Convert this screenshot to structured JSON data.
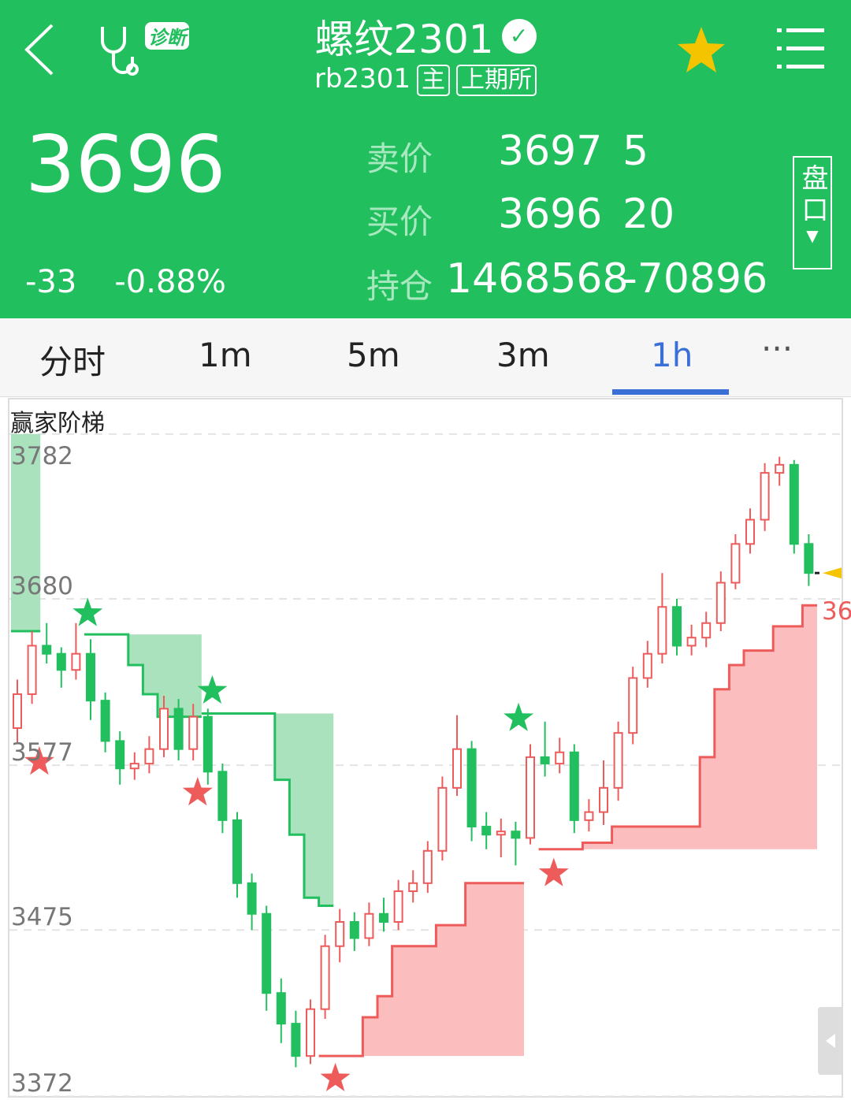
{
  "header": {
    "title": "螺纹2301",
    "code": "rb2301",
    "tag_main": "主",
    "exchange": "上期所",
    "diagnose_badge": "诊断",
    "last_price": "3696",
    "change": "-33",
    "change_pct": "-0.88%",
    "ask_label": "卖价",
    "ask_price": "3697",
    "ask_vol": "5",
    "bid_label": "买价",
    "bid_price": "3696",
    "bid_vol": "20",
    "oi_label": "持仓",
    "oi": "1468568",
    "oi_change": "-70896",
    "orderbook_button": "盘口",
    "favorite": true
  },
  "tabs": [
    {
      "label": "分时"
    },
    {
      "label": "1m"
    },
    {
      "label": "5m"
    },
    {
      "label": "3m"
    },
    {
      "label": "1h",
      "active": true
    },
    {
      "label": "···"
    }
  ],
  "colors": {
    "header": "#22bf5f",
    "up": "#ee5b5b",
    "down": "#22bf5f",
    "active_tab": "#3a6fd8",
    "current_price_marker": "#f5c400"
  },
  "chart_data": {
    "type": "candlestick",
    "title": "赢家阶梯",
    "yticks": [
      "3782",
      "3680",
      "3577",
      "3475",
      "3372"
    ],
    "ytick_values": [
      3782,
      3680,
      3577,
      3475,
      3372
    ],
    "ylim": [
      3372,
      3782
    ],
    "current_price": 3696,
    "ladder_label": "36",
    "ohlc": [
      [
        3600,
        3630,
        3590,
        3621
      ],
      [
        3621,
        3660,
        3615,
        3651
      ],
      [
        3651,
        3665,
        3640,
        3646
      ],
      [
        3646,
        3650,
        3625,
        3636
      ],
      [
        3636,
        3665,
        3630,
        3646
      ],
      [
        3646,
        3655,
        3605,
        3617
      ],
      [
        3617,
        3622,
        3585,
        3592
      ],
      [
        3592,
        3598,
        3565,
        3575
      ],
      [
        3575,
        3585,
        3568,
        3578
      ],
      [
        3578,
        3595,
        3572,
        3587
      ],
      [
        3587,
        3620,
        3582,
        3612
      ],
      [
        3612,
        3618,
        3580,
        3587
      ],
      [
        3587,
        3615,
        3580,
        3607
      ],
      [
        3607,
        3612,
        3565,
        3573
      ],
      [
        3573,
        3578,
        3535,
        3543
      ],
      [
        3543,
        3548,
        3495,
        3504
      ],
      [
        3504,
        3510,
        3475,
        3485
      ],
      [
        3485,
        3490,
        3425,
        3436
      ],
      [
        3436,
        3445,
        3405,
        3417
      ],
      [
        3417,
        3425,
        3390,
        3397
      ],
      [
        3397,
        3432,
        3392,
        3426
      ],
      [
        3426,
        3472,
        3420,
        3465
      ],
      [
        3465,
        3488,
        3455,
        3480
      ],
      [
        3480,
        3486,
        3462,
        3470
      ],
      [
        3470,
        3492,
        3465,
        3485
      ],
      [
        3485,
        3495,
        3474,
        3480
      ],
      [
        3480,
        3506,
        3475,
        3499
      ],
      [
        3499,
        3512,
        3492,
        3504
      ],
      [
        3504,
        3530,
        3498,
        3524
      ],
      [
        3524,
        3570,
        3518,
        3563
      ],
      [
        3563,
        3608,
        3558,
        3587
      ],
      [
        3587,
        3592,
        3530,
        3539
      ],
      [
        3539,
        3548,
        3525,
        3534
      ],
      [
        3534,
        3544,
        3520,
        3536
      ],
      [
        3536,
        3542,
        3515,
        3532
      ],
      [
        3532,
        3590,
        3528,
        3582
      ],
      [
        3582,
        3604,
        3570,
        3578
      ],
      [
        3578,
        3594,
        3572,
        3585
      ],
      [
        3585,
        3590,
        3535,
        3543
      ],
      [
        3543,
        3556,
        3536,
        3548
      ],
      [
        3548,
        3580,
        3540,
        3563
      ],
      [
        3563,
        3604,
        3555,
        3597
      ],
      [
        3597,
        3638,
        3590,
        3631
      ],
      [
        3631,
        3654,
        3625,
        3646
      ],
      [
        3646,
        3696,
        3640,
        3675
      ],
      [
        3675,
        3680,
        3645,
        3651
      ],
      [
        3651,
        3664,
        3645,
        3656
      ],
      [
        3656,
        3672,
        3650,
        3665
      ],
      [
        3665,
        3697,
        3660,
        3690
      ],
      [
        3690,
        3720,
        3686,
        3714
      ],
      [
        3714,
        3736,
        3708,
        3729
      ],
      [
        3729,
        3764,
        3722,
        3758
      ],
      [
        3758,
        3768,
        3750,
        3763
      ],
      [
        3763,
        3766,
        3708,
        3714
      ],
      [
        3714,
        3720,
        3688,
        3696
      ]
    ],
    "ladders": [
      {
        "trend": "down",
        "base": 3782,
        "end": 2,
        "steps": [
          [
            0,
            3660
          ]
        ]
      },
      {
        "trend": "down",
        "base": 3658,
        "end": 13,
        "steps": [
          [
            5,
            3658
          ],
          [
            8,
            3639
          ],
          [
            9,
            3621
          ],
          [
            10,
            3607
          ]
        ]
      },
      {
        "trend": "down",
        "base": 3609,
        "end": 22,
        "steps": [
          [
            13,
            3609
          ],
          [
            18,
            3568
          ],
          [
            19,
            3534
          ],
          [
            20,
            3495
          ],
          [
            21,
            3490
          ]
        ]
      },
      {
        "trend": "up",
        "base": 3397,
        "end": 35,
        "steps": [
          [
            21,
            3397
          ],
          [
            24,
            3421
          ],
          [
            25,
            3434
          ],
          [
            26,
            3465
          ],
          [
            29,
            3478
          ],
          [
            31,
            3504
          ]
        ]
      },
      {
        "trend": "up",
        "base": 3525,
        "end": 55,
        "steps": [
          [
            36,
            3525
          ],
          [
            39,
            3529
          ],
          [
            41,
            3539
          ],
          [
            47,
            3582
          ],
          [
            48,
            3624
          ],
          [
            49,
            3639
          ],
          [
            50,
            3648
          ],
          [
            52,
            3663
          ],
          [
            54,
            3676
          ]
        ]
      }
    ],
    "signals": [
      {
        "type": "green",
        "index": 4.8,
        "price": 3671
      },
      {
        "type": "green",
        "index": 13.3,
        "price": 3623
      },
      {
        "type": "green",
        "index": 34.2,
        "price": 3606
      },
      {
        "type": "red",
        "index": 1.5,
        "price": 3579
      },
      {
        "type": "red",
        "index": 12.3,
        "price": 3560
      },
      {
        "type": "red",
        "index": 21.7,
        "price": 3383
      },
      {
        "type": "red",
        "index": 36.6,
        "price": 3510
      }
    ]
  }
}
